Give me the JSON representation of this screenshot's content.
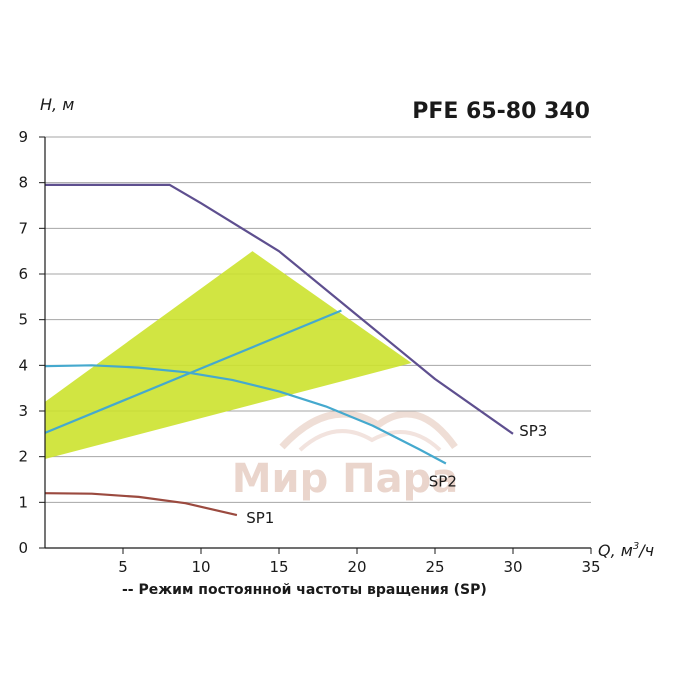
{
  "chart_data": {
    "type": "line",
    "title": "PFE 65-80 340",
    "ylabel": "H, м",
    "xlabel_prefix": "Q, м",
    "xlabel_sup": "3",
    "xlabel_suffix": "/ч",
    "xlim": [
      0,
      35
    ],
    "ylim": [
      0,
      9
    ],
    "xticks": [
      5,
      10,
      15,
      20,
      25,
      30,
      35
    ],
    "yticks": [
      0,
      1,
      2,
      3,
      4,
      5,
      6,
      7,
      8,
      9
    ],
    "grid": "horizontal",
    "caption": "-- Режим постоянной частоты вращения (SP)",
    "watermark": "Мир Пара",
    "region": {
      "name": "working-area",
      "color": "#cce22d",
      "points": [
        [
          0,
          1.95
        ],
        [
          0,
          3.2
        ],
        [
          13.3,
          6.5
        ],
        [
          23.5,
          4.05
        ]
      ]
    },
    "series": [
      {
        "name": "SP3",
        "color": "#5e4f8f",
        "points": [
          [
            0,
            7.95
          ],
          [
            8,
            7.95
          ],
          [
            10,
            7.55
          ],
          [
            15,
            6.5
          ],
          [
            20,
            5.1
          ],
          [
            25,
            3.7
          ],
          [
            30,
            2.5
          ]
        ],
        "label_at": [
          30.4,
          2.45
        ]
      },
      {
        "name": "SP2",
        "color": "#45a9ce",
        "points": [
          [
            0,
            3.98
          ],
          [
            3,
            4.0
          ],
          [
            6,
            3.95
          ],
          [
            9,
            3.85
          ],
          [
            12,
            3.68
          ],
          [
            15,
            3.43
          ],
          [
            18,
            3.1
          ],
          [
            21,
            2.68
          ],
          [
            24,
            2.16
          ],
          [
            25.7,
            1.85
          ]
        ],
        "label_at": [
          24.6,
          1.35
        ]
      },
      {
        "name": "SP2-line",
        "color": "#45a9ce",
        "points": [
          [
            0,
            2.52
          ],
          [
            19,
            5.2
          ]
        ],
        "label_at": null
      },
      {
        "name": "SP1",
        "color": "#9b4a3f",
        "points": [
          [
            0,
            1.2
          ],
          [
            3,
            1.19
          ],
          [
            6,
            1.12
          ],
          [
            9,
            0.98
          ],
          [
            12.3,
            0.72
          ]
        ],
        "label_at": [
          12.9,
          0.55
        ]
      }
    ]
  }
}
